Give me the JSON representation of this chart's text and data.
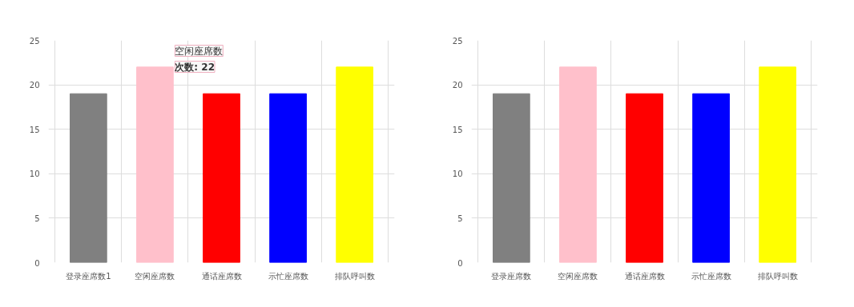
{
  "chart_data": [
    {
      "type": "bar",
      "categories": [
        "登录座席数1",
        "空闲座席数",
        "通话座席数",
        "示忙座席数",
        "排队呼叫数"
      ],
      "colors": [
        "#808080",
        "#ffc0cb",
        "#ff0000",
        "#0000ff",
        "#ffff00"
      ],
      "values": [
        19,
        22,
        19,
        19,
        22
      ],
      "ylim": [
        0,
        25
      ],
      "yticks": [
        0,
        5,
        10,
        15,
        20,
        25
      ],
      "grid": true,
      "annotations": [
        "空闲座席数",
        "次数: 22"
      ]
    },
    {
      "type": "bar",
      "categories": [
        "登录座席数",
        "空闲座席数",
        "通话座席数",
        "示忙座席数",
        "排队呼叫数"
      ],
      "colors": [
        "#808080",
        "#ffc0cb",
        "#ff0000",
        "#0000ff",
        "#ffff00"
      ],
      "values": [
        19,
        22,
        19,
        19,
        22
      ],
      "ylim": [
        0,
        25
      ],
      "yticks": [
        0,
        5,
        10,
        15,
        20,
        25
      ],
      "grid": true
    }
  ]
}
